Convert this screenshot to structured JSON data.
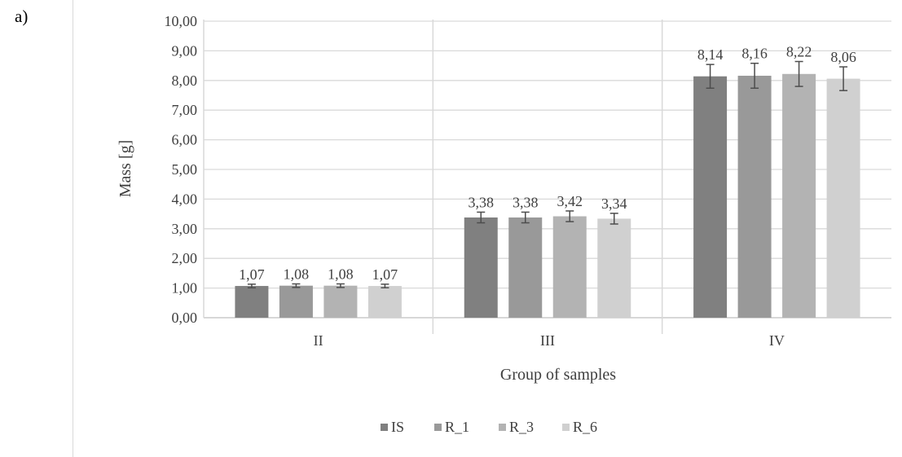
{
  "panel_label": "a)",
  "chart_data": {
    "type": "bar",
    "title": "",
    "xlabel": "Group of samples",
    "ylabel": "Mass [g]",
    "ylim": [
      0,
      10
    ],
    "ytick_step": 1,
    "ytick_labels": [
      "0,00",
      "1,00",
      "2,00",
      "3,00",
      "4,00",
      "5,00",
      "6,00",
      "7,00",
      "8,00",
      "9,00",
      "10,00"
    ],
    "categories": [
      "II",
      "III",
      "IV"
    ],
    "grid": true,
    "legend_position": "bottom",
    "series": [
      {
        "name": "IS",
        "color": "#808080",
        "values": [
          1.07,
          3.38,
          8.14
        ],
        "labels": [
          "1,07",
          "3,38",
          "8,14"
        ],
        "errors": [
          0.06,
          0.18,
          0.4
        ]
      },
      {
        "name": "R_1",
        "color": "#999999",
        "values": [
          1.08,
          3.38,
          8.16
        ],
        "labels": [
          "1,08",
          "3,38",
          "8,16"
        ],
        "errors": [
          0.06,
          0.18,
          0.42
        ]
      },
      {
        "name": "R_3",
        "color": "#b3b3b3",
        "values": [
          1.08,
          3.42,
          8.22
        ],
        "labels": [
          "1,08",
          "3,42",
          "8,22"
        ],
        "errors": [
          0.06,
          0.18,
          0.42
        ]
      },
      {
        "name": "R_6",
        "color": "#d0d0d0",
        "values": [
          1.07,
          3.34,
          8.06
        ],
        "labels": [
          "1,07",
          "3,34",
          "8,06"
        ],
        "errors": [
          0.06,
          0.18,
          0.4
        ]
      }
    ]
  }
}
